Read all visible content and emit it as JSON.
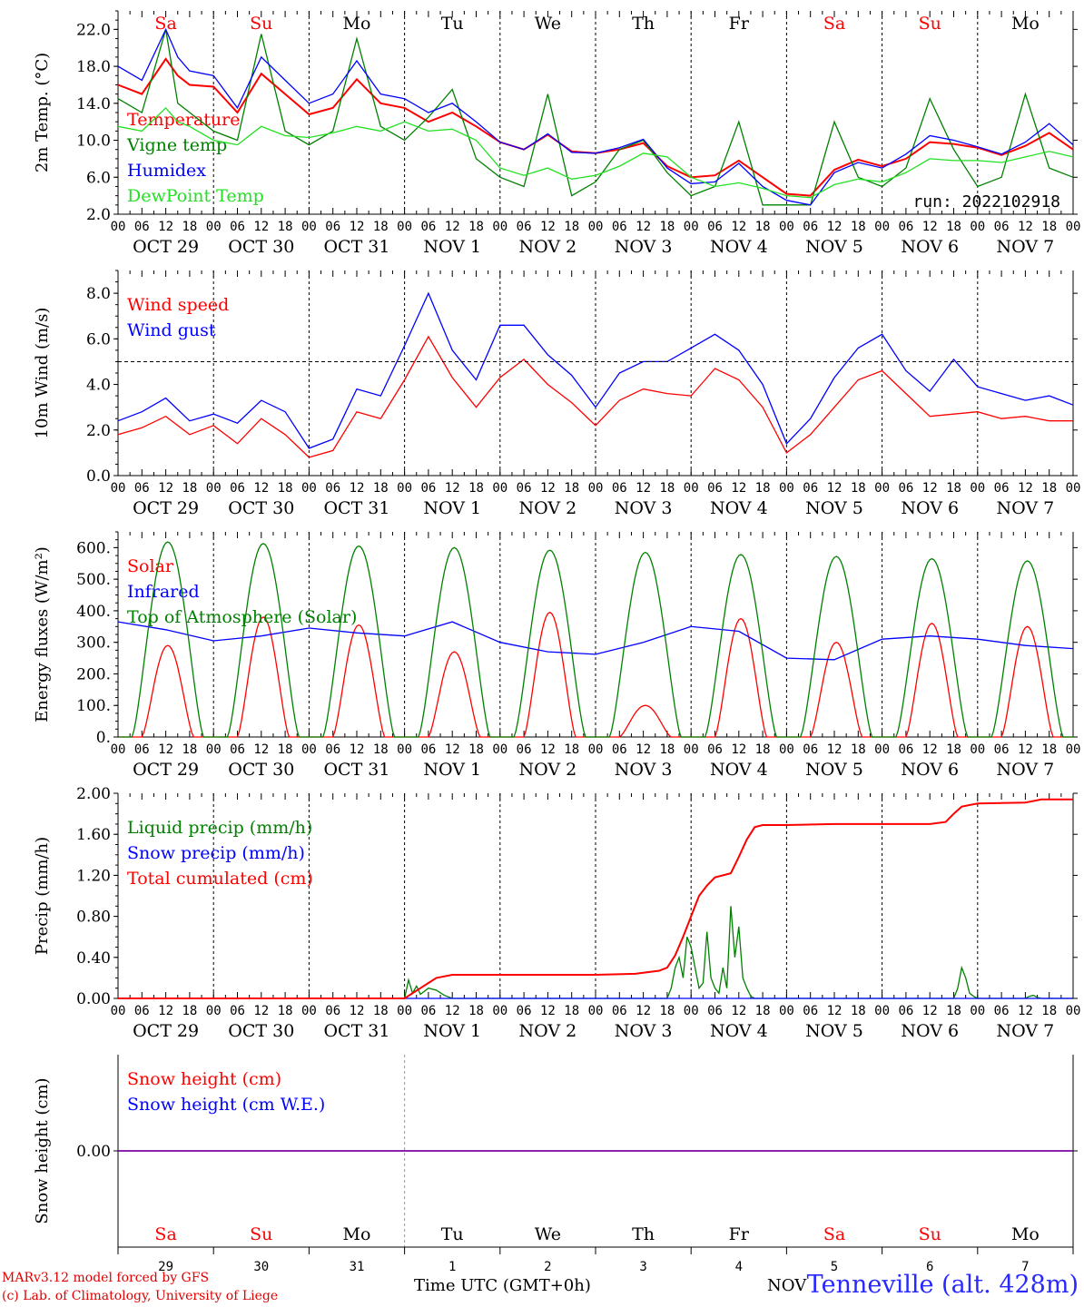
{
  "page": {
    "credit_line1": "MARv3.12 model forced by GFS",
    "credit_line2": "(c) Lab. of Climatology, University of Liege",
    "x_title": "Time UTC (GMT+0h)",
    "month_label": "NOV",
    "station": "Tenneville (alt. 428m)"
  },
  "colors": {
    "red": "#ff0000",
    "blue": "#0000ff",
    "green": "#008000",
    "lightgreen": "#22e022",
    "purple": "#7a00a0",
    "weekend": "#ff0000"
  },
  "chart_data": [
    {
      "type": "line",
      "id": "temp",
      "ylabel": "2m Temp. (°C)",
      "ylim": [
        2,
        24
      ],
      "yticks": [
        "2.0",
        "6.0",
        "10.0",
        "14.0",
        "18.0",
        "22.0"
      ],
      "run_label": "run: 2022102918",
      "x_unit": "hours since Oct 29 00 UTC",
      "series": [
        {
          "name": "Temperature",
          "color": "#ff0000",
          "x": [
            0,
            6,
            12,
            15,
            18,
            24,
            30,
            36,
            42,
            48,
            54,
            60,
            66,
            72,
            78,
            84,
            90,
            96,
            102,
            108,
            114,
            120,
            126,
            132,
            138,
            144,
            150,
            156,
            162,
            168,
            174,
            180,
            186,
            192,
            198,
            204,
            210,
            216,
            222,
            228,
            234,
            240
          ],
          "y": [
            16,
            15,
            18.8,
            17,
            16,
            15.8,
            13,
            17.2,
            15,
            12.8,
            13.5,
            16.6,
            14,
            13.5,
            12,
            13,
            11.5,
            9.8,
            9,
            10.6,
            8.8,
            8.6,
            9,
            9.7,
            7.2,
            6,
            6.2,
            7.8,
            6,
            4.2,
            4,
            6.8,
            7.9,
            7.2,
            8,
            9.8,
            9.6,
            9.2,
            8.4,
            9.4,
            10.8,
            9
          ]
        },
        {
          "name": "Vigne temp",
          "color": "#008000",
          "x": [
            0,
            6,
            12,
            15,
            18,
            24,
            30,
            36,
            42,
            48,
            54,
            60,
            66,
            72,
            78,
            84,
            90,
            96,
            102,
            108,
            114,
            120,
            126,
            132,
            138,
            144,
            150,
            156,
            162,
            168,
            174,
            180,
            186,
            192,
            198,
            204,
            210,
            216,
            222,
            228,
            234,
            240
          ],
          "y": [
            14.5,
            13,
            22,
            14,
            13,
            11,
            10,
            21.5,
            11,
            9.5,
            11,
            21,
            11.5,
            10,
            12.5,
            15.5,
            8,
            6,
            5,
            15,
            4,
            5.5,
            9,
            10,
            6.5,
            4,
            5,
            12,
            3,
            3,
            3,
            12,
            6,
            5,
            7,
            14.5,
            9,
            5,
            6,
            15,
            7,
            6
          ]
        },
        {
          "name": "Humidex",
          "color": "#0000ff",
          "x": [
            0,
            6,
            12,
            15,
            18,
            24,
            30,
            36,
            42,
            48,
            54,
            60,
            66,
            72,
            78,
            84,
            90,
            96,
            102,
            108,
            114,
            120,
            126,
            132,
            138,
            144,
            150,
            156,
            162,
            168,
            174,
            180,
            186,
            192,
            198,
            204,
            210,
            216,
            222,
            228,
            234,
            240
          ],
          "y": [
            18,
            16.5,
            22,
            19,
            17.5,
            17,
            13.5,
            19,
            16.5,
            14,
            15,
            18.6,
            15,
            14.5,
            13,
            14,
            12,
            9.8,
            9,
            10.7,
            8.7,
            8.6,
            9.2,
            10.1,
            7,
            5.3,
            5.5,
            7.5,
            5,
            3.5,
            3,
            6.5,
            7.6,
            7,
            8.5,
            10.5,
            10,
            9.3,
            8.5,
            9.8,
            11.8,
            9.5
          ]
        },
        {
          "name": "DewPoint Temp",
          "color": "#22e022",
          "x": [
            0,
            6,
            12,
            15,
            18,
            24,
            30,
            36,
            42,
            48,
            54,
            60,
            66,
            72,
            78,
            84,
            90,
            96,
            102,
            108,
            114,
            120,
            126,
            132,
            138,
            144,
            150,
            156,
            162,
            168,
            174,
            180,
            186,
            192,
            198,
            204,
            210,
            216,
            222,
            228,
            234,
            240
          ],
          "y": [
            11.5,
            11,
            13.5,
            12,
            11.5,
            10,
            9.5,
            11.5,
            10.5,
            10.3,
            10.8,
            11.5,
            11,
            12,
            11,
            11.2,
            10,
            7,
            6.2,
            7,
            5.8,
            6.2,
            7.2,
            8.6,
            8.2,
            6,
            5,
            5.4,
            4.8,
            4,
            3.8,
            5.2,
            5.8,
            5.5,
            6.5,
            8,
            7.8,
            7.8,
            7.6,
            8.2,
            8.8,
            8.2
          ]
        }
      ]
    },
    {
      "type": "line",
      "id": "wind",
      "ylabel": "10m Wind (m/s)",
      "ylim": [
        0,
        9
      ],
      "yticks": [
        "0.0",
        "2.0",
        "4.0",
        "6.0",
        "8.0"
      ],
      "threshold": 5,
      "series": [
        {
          "name": "Wind speed",
          "color": "#ff0000",
          "x": [
            0,
            6,
            12,
            18,
            24,
            30,
            36,
            42,
            48,
            54,
            60,
            66,
            72,
            78,
            84,
            90,
            96,
            102,
            108,
            114,
            120,
            126,
            132,
            138,
            144,
            150,
            156,
            162,
            168,
            174,
            180,
            186,
            192,
            198,
            204,
            210,
            216,
            222,
            228,
            234,
            240
          ],
          "y": [
            1.8,
            2.1,
            2.6,
            1.8,
            2.2,
            1.4,
            2.5,
            1.8,
            0.8,
            1.1,
            2.8,
            2.5,
            4.2,
            6.1,
            4.3,
            3,
            4.3,
            5.1,
            4,
            3.2,
            2.2,
            3.3,
            3.8,
            3.6,
            3.5,
            4.7,
            4.2,
            3,
            1,
            1.8,
            3,
            4.2,
            4.6,
            3.6,
            2.6,
            2.7,
            2.8,
            2.5,
            2.6,
            2.4,
            2.4
          ]
        },
        {
          "name": "Wind gust",
          "color": "#0000ff",
          "x": [
            0,
            6,
            12,
            18,
            24,
            30,
            36,
            42,
            48,
            54,
            60,
            66,
            72,
            78,
            84,
            90,
            96,
            102,
            108,
            114,
            120,
            126,
            132,
            138,
            144,
            150,
            156,
            162,
            168,
            174,
            180,
            186,
            192,
            198,
            204,
            210,
            216,
            222,
            228,
            234,
            240
          ],
          "y": [
            2.4,
            2.8,
            3.4,
            2.4,
            2.7,
            2.3,
            3.3,
            2.8,
            1.2,
            1.6,
            3.8,
            3.5,
            5.7,
            8,
            5.5,
            4.2,
            6.6,
            6.6,
            5.3,
            4.4,
            3,
            4.5,
            5,
            5,
            5.6,
            6.2,
            5.5,
            4,
            1.4,
            2.5,
            4.3,
            5.6,
            6.2,
            4.6,
            3.7,
            5.1,
            3.9,
            3.6,
            3.3,
            3.5,
            3.1
          ]
        }
      ]
    },
    {
      "type": "line",
      "id": "energy",
      "ylabel": "Energy fluxes (W/m²)",
      "ylim": [
        0,
        650
      ],
      "yticks": [
        "0.",
        "100.",
        "200.",
        "300.",
        "400.",
        "500.",
        "600."
      ],
      "series": [
        {
          "name": "Solar",
          "color": "#ff0000",
          "peaks": [
            290,
            380,
            355,
            270,
            395,
            100,
            375,
            300,
            360,
            350
          ]
        },
        {
          "name": "Infrared",
          "color": "#0000ff",
          "x": [
            0,
            12,
            24,
            36,
            48,
            60,
            72,
            84,
            96,
            108,
            120,
            132,
            144,
            156,
            168,
            180,
            192,
            204,
            216,
            228,
            240
          ],
          "y": [
            365,
            340,
            305,
            320,
            345,
            330,
            320,
            365,
            300,
            270,
            262,
            300,
            350,
            335,
            250,
            245,
            310,
            320,
            310,
            290,
            280
          ]
        },
        {
          "name": "Top of Atmosphere (Solar)",
          "color": "#008000",
          "peaks": [
            618,
            613,
            605,
            600,
            592,
            585,
            578,
            572,
            565,
            558
          ]
        }
      ]
    },
    {
      "type": "line",
      "id": "precip",
      "ylabel": "Precip (mm/h)",
      "ylim": [
        0,
        2
      ],
      "yticks": [
        "0.00",
        "0.40",
        "0.80",
        "1.20",
        "1.60",
        "2.00"
      ],
      "series": [
        {
          "name": "Liquid precip (mm/h)",
          "color": "#008000",
          "x": [
            0,
            72,
            73,
            74,
            75,
            76,
            78,
            80,
            82,
            84,
            138,
            139,
            140,
            141,
            142,
            143,
            144,
            145,
            146,
            147,
            148,
            149,
            150,
            151,
            152,
            153,
            154,
            155,
            156,
            157,
            158,
            159,
            160,
            210,
            211,
            212,
            213,
            214,
            215,
            216,
            228,
            229,
            230,
            231,
            232,
            240
          ],
          "y": [
            0,
            0,
            0.18,
            0.05,
            0.12,
            0.04,
            0.1,
            0.08,
            0.03,
            0,
            0,
            0.1,
            0.3,
            0.4,
            0.2,
            0.6,
            0.5,
            0.3,
            0.1,
            0.15,
            0.65,
            0.2,
            0.1,
            0.05,
            0.3,
            0.1,
            0.9,
            0.4,
            0.7,
            0.2,
            0.1,
            0.02,
            0,
            0,
            0.1,
            0.3,
            0.2,
            0.05,
            0.02,
            0,
            0,
            0.02,
            0.03,
            0.01,
            0,
            0
          ]
        },
        {
          "name": "Snow precip (mm/h)",
          "color": "#0000ff",
          "x": [
            0,
            240
          ],
          "y": [
            0,
            0
          ]
        },
        {
          "name": "Total cumulated (cm)",
          "color": "#ff0000",
          "x": [
            0,
            72,
            74,
            76,
            78,
            80,
            84,
            96,
            108,
            120,
            130,
            136,
            138,
            140,
            142,
            144,
            146,
            148,
            150,
            152,
            154,
            156,
            158,
            160,
            162,
            168,
            180,
            192,
            198,
            204,
            208,
            210,
            212,
            216,
            228,
            232,
            240
          ],
          "y": [
            0,
            0,
            0.05,
            0.1,
            0.15,
            0.2,
            0.23,
            0.23,
            0.23,
            0.23,
            0.24,
            0.27,
            0.3,
            0.42,
            0.6,
            0.8,
            1.0,
            1.1,
            1.18,
            1.2,
            1.22,
            1.38,
            1.55,
            1.67,
            1.69,
            1.69,
            1.7,
            1.7,
            1.7,
            1.7,
            1.72,
            1.8,
            1.87,
            1.9,
            1.91,
            1.94,
            1.94
          ]
        }
      ]
    },
    {
      "type": "line",
      "id": "snow",
      "ylabel": "Snow height (cm)",
      "yticks": [
        "0.00"
      ],
      "series": [
        {
          "name": "Snow height (cm)",
          "color": "#ff0000",
          "x": [
            0,
            240
          ],
          "y": [
            0,
            0
          ]
        },
        {
          "name": "Snow height (cm W.E.)",
          "color": "#0000ff",
          "x": [
            0,
            240
          ],
          "y": [
            0,
            0
          ]
        }
      ]
    }
  ],
  "time_axis": {
    "hour_ticks": [
      "00",
      "06",
      "12",
      "18"
    ],
    "end_tick": "00",
    "dates": [
      "OCT 29",
      "OCT 30",
      "OCT 31",
      "NOV  1",
      "NOV  2",
      "NOV  3",
      "NOV  4",
      "NOV  5",
      "NOV  6",
      "NOV  7"
    ],
    "weekdays": [
      "Sa",
      "Su",
      "Mo",
      "Tu",
      "We",
      "Th",
      "Fr",
      "Sa",
      "Su",
      "Mo"
    ],
    "weekend_flags": [
      true,
      true,
      false,
      false,
      false,
      false,
      false,
      true,
      true,
      false
    ],
    "day_numbers": [
      "29",
      "30",
      "31",
      "1",
      "2",
      "3",
      "4",
      "5",
      "6",
      "7"
    ]
  }
}
